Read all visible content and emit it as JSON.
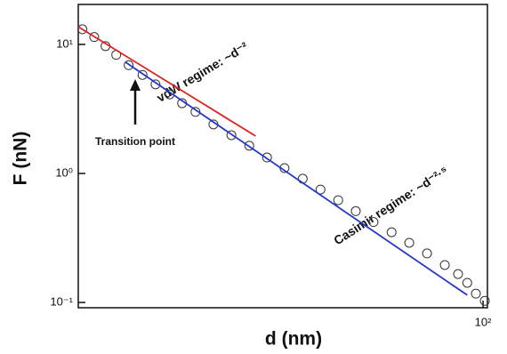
{
  "chart_data": {
    "type": "scatter",
    "x_label": "d (nm)",
    "y_label": "F (nN)",
    "xscale": "log",
    "yscale": "log",
    "xlim": [
      16.0,
      102
    ],
    "ylim": [
      0.091,
      20.4
    ],
    "xticks": [
      {
        "value": 100,
        "label": "10²"
      }
    ],
    "yticks": [
      {
        "value": 0.1,
        "label": "10⁻¹"
      },
      {
        "value": 1,
        "label": "10⁰"
      },
      {
        "value": 10,
        "label": "10¹"
      }
    ],
    "series": [
      {
        "kind": "points",
        "color": "#333333",
        "x": [
          16.3,
          17.2,
          18.1,
          19.0,
          20.1,
          21.4,
          22.7,
          24.2,
          25.6,
          27.2,
          29.5,
          32.0,
          34.7,
          37.6,
          40.7,
          44.2,
          47.9,
          51.9,
          56.2,
          60.9,
          66.1,
          71.6,
          77.6,
          84.1,
          89.3,
          93.1,
          96.8,
          100.8
        ],
        "values": [
          13.1,
          11.4,
          9.7,
          8.3,
          6.9,
          5.8,
          4.9,
          4.1,
          3.5,
          3.0,
          2.4,
          1.98,
          1.64,
          1.33,
          1.1,
          0.91,
          0.75,
          0.62,
          0.51,
          0.42,
          0.35,
          0.29,
          0.24,
          0.195,
          0.166,
          0.142,
          0.117,
          0.103
        ]
      },
      {
        "kind": "line",
        "color": "#e0201c",
        "x": [
          16.0,
          35.7
        ],
        "values": [
          13.7,
          1.95
        ]
      },
      {
        "kind": "line",
        "color": "#2236c8",
        "x": [
          19.8,
          93.1
        ],
        "values": [
          7.3,
          0.114
        ]
      }
    ],
    "annotations": [
      "vdW regime: ~d⁻²",
      "Transition point",
      "Casimir regime: ~d⁻²·⁵"
    ]
  }
}
